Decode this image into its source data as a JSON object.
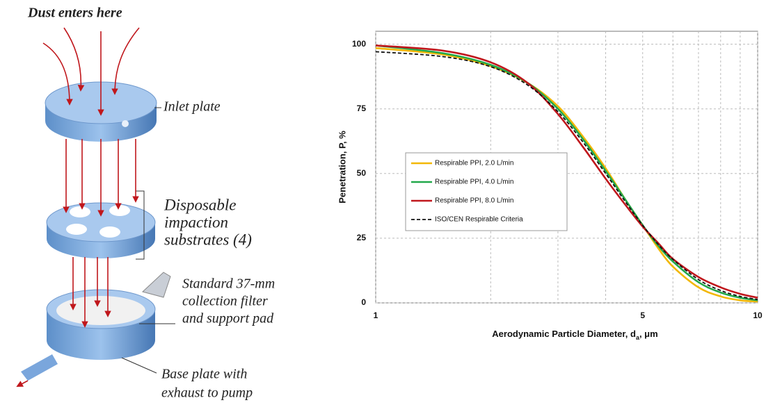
{
  "diagram": {
    "top_label": "Dust enters here",
    "inlet_label": "Inlet plate",
    "substrate_label": [
      "Disposable",
      "impaction",
      "substrates (4)"
    ],
    "filter_label": [
      "Standard 37-mm",
      "collection filter",
      "and support pad"
    ],
    "base_label": [
      "Base plate with",
      "exhaust to pump"
    ]
  },
  "chart_data": {
    "type": "line",
    "ylabel": "Penetration, P, %",
    "xlabel": {
      "main": "Aerodynamic Particle Diameter, d",
      "sub": "a",
      "unit": ", μm"
    },
    "x": [
      1,
      1.5,
      2,
      2.5,
      3,
      3.5,
      4,
      4.5,
      5,
      5.5,
      6,
      7,
      8,
      9,
      10
    ],
    "xscale": "log",
    "xlim": [
      1,
      10
    ],
    "xticks": [
      1,
      5,
      10
    ],
    "xgrid": [
      2,
      3,
      4,
      6,
      7,
      8,
      9
    ],
    "ylim": [
      0,
      105
    ],
    "yticks": [
      0,
      25,
      50,
      75,
      100
    ],
    "grid": true,
    "legend": "center-left",
    "series": [
      {
        "name": "Respirable PPI, 2.0 L/min",
        "color": "#f2b705",
        "dash": false,
        "values": [
          98.5,
          96,
          91.5,
          85,
          76,
          64,
          52,
          40,
          30,
          21,
          14,
          6,
          2.5,
          1,
          0.5
        ]
      },
      {
        "name": "Respirable PPI, 4.0 L/min",
        "color": "#22a84a",
        "dash": false,
        "values": [
          99.5,
          96.5,
          92,
          85,
          75,
          63,
          51,
          40,
          30,
          22,
          16,
          8,
          4,
          2,
          1
        ]
      },
      {
        "name": "Respirable PPI, 8.0 L/min",
        "color": "#c0171c",
        "dash": false,
        "values": [
          99.5,
          97.5,
          93,
          85,
          73,
          60,
          48,
          38,
          29.5,
          23,
          17,
          10,
          6,
          3.5,
          2
        ]
      },
      {
        "name": "ISO/CEN Respirable Criteria",
        "color": "#111111",
        "dash": true,
        "values": [
          97.1,
          95.2,
          91.3,
          84.2,
          73.9,
          61.9,
          50,
          39.2,
          30,
          22.5,
          16.8,
          9,
          4.8,
          2.5,
          1.3
        ]
      }
    ]
  }
}
